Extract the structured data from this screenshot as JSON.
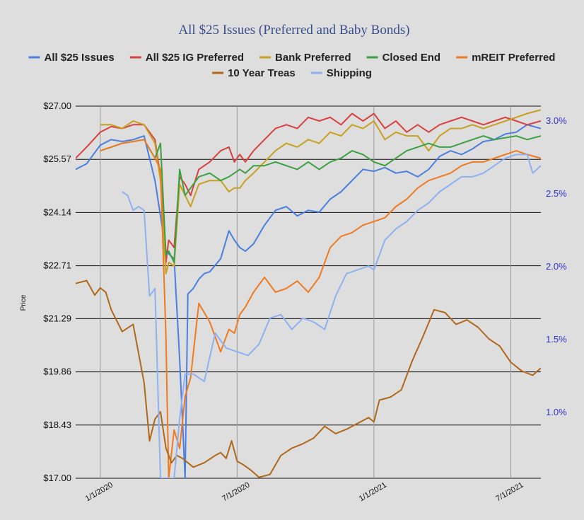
{
  "chart_data": {
    "type": "line",
    "title": "All $25 Issues (Preferred and Baby Bonds)",
    "ylabel": "Price",
    "ylim": [
      17.0,
      27.0
    ],
    "y2lim": [
      0.5,
      3.1
    ],
    "grid": true,
    "legend_position": "top",
    "x_ticks": [
      "1/1/2020",
      "7/1/2020",
      "1/1/2021",
      "7/1/2021"
    ],
    "x_tick_values": [
      2020.0,
      2020.5,
      2021.0,
      2021.5
    ],
    "xlim": [
      2019.91,
      2021.61
    ],
    "y_ticks": [
      "$27.00",
      "$25.57",
      "$24.14",
      "$22.71",
      "$21.29",
      "$19.86",
      "$18.43",
      "$17.00"
    ],
    "y_tick_values": [
      27.0,
      25.57,
      24.14,
      22.71,
      21.29,
      19.86,
      18.43,
      17.0
    ],
    "y2_ticks": [
      "3.0%",
      "2.5%",
      "2.0%",
      "1.5%",
      "1.0%"
    ],
    "y2_tick_values": [
      3.0,
      2.5,
      2.0,
      1.5,
      1.0
    ],
    "series": [
      {
        "name": "All $25 Issues",
        "color": "#4a7fe0",
        "axis": "left",
        "x": [
          2019.91,
          2019.95,
          2020.0,
          2020.04,
          2020.08,
          2020.12,
          2020.16,
          2020.2,
          2020.24,
          2020.27,
          2020.29,
          2020.31,
          2020.32,
          2020.34,
          2020.36,
          2020.38,
          2020.4,
          2020.44,
          2020.47,
          2020.49,
          2020.51,
          2020.53,
          2020.56,
          2020.6,
          2020.64,
          2020.68,
          2020.72,
          2020.76,
          2020.8,
          2020.84,
          2020.88,
          2020.92,
          2020.96,
          2021.0,
          2021.04,
          2021.08,
          2021.12,
          2021.16,
          2021.2,
          2021.24,
          2021.28,
          2021.32,
          2021.36,
          2021.4,
          2021.44,
          2021.48,
          2021.52,
          2021.56,
          2021.61
        ],
        "values": [
          25.3,
          25.45,
          25.95,
          26.1,
          26.05,
          26.1,
          26.2,
          25.0,
          23.1,
          22.9,
          20.2,
          17.0,
          21.95,
          22.1,
          22.35,
          22.5,
          22.55,
          22.9,
          23.65,
          23.4,
          23.2,
          23.1,
          23.3,
          23.8,
          24.2,
          24.3,
          24.05,
          24.2,
          24.15,
          24.5,
          24.7,
          25.0,
          25.3,
          25.25,
          25.35,
          25.2,
          25.25,
          25.1,
          25.3,
          25.65,
          25.8,
          25.7,
          25.85,
          26.05,
          26.1,
          26.25,
          26.3,
          26.5,
          26.4
        ]
      },
      {
        "name": "All $25 IG Preferred",
        "color": "#d94040",
        "axis": "left",
        "x": [
          2019.91,
          2019.95,
          2020.0,
          2020.04,
          2020.08,
          2020.12,
          2020.16,
          2020.2,
          2020.22,
          2020.24,
          2020.25,
          2020.27,
          2020.29,
          2020.31,
          2020.33,
          2020.36,
          2020.4,
          2020.44,
          2020.47,
          2020.49,
          2020.51,
          2020.53,
          2020.56,
          2020.6,
          2020.64,
          2020.68,
          2020.72,
          2020.76,
          2020.8,
          2020.84,
          2020.88,
          2020.92,
          2020.96,
          2021.0,
          2021.04,
          2021.08,
          2021.12,
          2021.16,
          2021.2,
          2021.24,
          2021.28,
          2021.32,
          2021.36,
          2021.4,
          2021.44,
          2021.48,
          2021.52,
          2021.56,
          2021.61
        ],
        "values": [
          25.6,
          25.9,
          26.3,
          26.45,
          26.4,
          26.5,
          26.5,
          26.1,
          25.1,
          22.8,
          23.4,
          23.2,
          25.1,
          24.9,
          24.6,
          25.3,
          25.5,
          25.8,
          25.9,
          25.5,
          25.7,
          25.5,
          25.8,
          26.1,
          26.4,
          26.5,
          26.4,
          26.7,
          26.6,
          26.7,
          26.5,
          26.8,
          26.6,
          26.8,
          26.4,
          26.6,
          26.3,
          26.5,
          26.3,
          26.5,
          26.6,
          26.7,
          26.6,
          26.5,
          26.6,
          26.7,
          26.6,
          26.5,
          26.6
        ]
      },
      {
        "name": "Bank Preferred",
        "color": "#c8a020",
        "axis": "left",
        "x": [
          2020.0,
          2020.04,
          2020.08,
          2020.12,
          2020.16,
          2020.2,
          2020.22,
          2020.24,
          2020.25,
          2020.27,
          2020.29,
          2020.31,
          2020.33,
          2020.36,
          2020.4,
          2020.44,
          2020.47,
          2020.49,
          2020.51,
          2020.53,
          2020.56,
          2020.6,
          2020.64,
          2020.68,
          2020.72,
          2020.76,
          2020.8,
          2020.84,
          2020.88,
          2020.92,
          2020.96,
          2021.0,
          2021.04,
          2021.08,
          2021.12,
          2021.16,
          2021.2,
          2021.24,
          2021.28,
          2021.32,
          2021.36,
          2021.4,
          2021.44,
          2021.48,
          2021.52,
          2021.56,
          2021.61
        ],
        "values": [
          26.5,
          26.5,
          26.4,
          26.6,
          26.5,
          26.0,
          25.0,
          22.5,
          22.8,
          22.7,
          24.9,
          24.6,
          24.3,
          24.9,
          25.0,
          25.0,
          24.7,
          24.8,
          24.8,
          25.0,
          25.2,
          25.5,
          25.8,
          26.0,
          25.9,
          26.1,
          26.0,
          26.3,
          26.2,
          26.5,
          26.4,
          26.6,
          26.1,
          26.3,
          26.2,
          26.2,
          25.8,
          26.2,
          26.4,
          26.4,
          26.5,
          26.4,
          26.5,
          26.6,
          26.7,
          26.8,
          26.9
        ]
      },
      {
        "name": "Closed End",
        "color": "#3aa040",
        "axis": "left",
        "x": [
          2020.0,
          2020.04,
          2020.08,
          2020.12,
          2020.16,
          2020.2,
          2020.22,
          2020.24,
          2020.25,
          2020.27,
          2020.29,
          2020.31,
          2020.33,
          2020.36,
          2020.4,
          2020.44,
          2020.47,
          2020.49,
          2020.51,
          2020.53,
          2020.56,
          2020.6,
          2020.64,
          2020.68,
          2020.72,
          2020.76,
          2020.8,
          2020.84,
          2020.88,
          2020.92,
          2020.96,
          2021.0,
          2021.04,
          2021.08,
          2021.12,
          2021.16,
          2021.2,
          2021.24,
          2021.28,
          2021.32,
          2021.36,
          2021.4,
          2021.44,
          2021.48,
          2021.52,
          2021.56,
          2021.61
        ],
        "values": [
          25.8,
          25.9,
          26.0,
          26.05,
          26.1,
          25.6,
          26.0,
          23.0,
          23.1,
          22.8,
          25.3,
          24.6,
          24.8,
          25.1,
          25.2,
          25.0,
          25.1,
          25.2,
          25.3,
          25.2,
          25.4,
          25.4,
          25.5,
          25.4,
          25.3,
          25.5,
          25.3,
          25.5,
          25.6,
          25.8,
          25.7,
          25.5,
          25.4,
          25.6,
          25.8,
          25.9,
          26.0,
          25.9,
          25.9,
          26.0,
          26.1,
          26.2,
          26.1,
          26.15,
          26.2,
          26.1,
          26.2
        ]
      },
      {
        "name": "mREIT Preferred",
        "color": "#f07a20",
        "axis": "left",
        "x": [
          2020.0,
          2020.04,
          2020.08,
          2020.12,
          2020.16,
          2020.2,
          2020.22,
          2020.24,
          2020.25,
          2020.27,
          2020.29,
          2020.31,
          2020.33,
          2020.36,
          2020.4,
          2020.44,
          2020.47,
          2020.49,
          2020.51,
          2020.53,
          2020.56,
          2020.6,
          2020.64,
          2020.68,
          2020.72,
          2020.76,
          2020.8,
          2020.84,
          2020.88,
          2020.92,
          2020.96,
          2021.0,
          2021.04,
          2021.08,
          2021.12,
          2021.16,
          2021.2,
          2021.24,
          2021.28,
          2021.32,
          2021.36,
          2021.4,
          2021.44,
          2021.48,
          2021.52,
          2021.56,
          2021.61
        ],
        "values": [
          25.8,
          25.9,
          26.0,
          26.05,
          26.1,
          25.6,
          25.3,
          20.8,
          17.0,
          18.3,
          17.8,
          19.2,
          19.7,
          21.7,
          21.2,
          20.4,
          21.0,
          20.9,
          21.4,
          21.6,
          22.0,
          22.4,
          22.0,
          22.1,
          22.3,
          22.0,
          22.4,
          23.2,
          23.5,
          23.6,
          23.8,
          23.9,
          24.0,
          24.3,
          24.5,
          24.8,
          25.0,
          25.1,
          25.2,
          25.4,
          25.5,
          25.5,
          25.6,
          25.7,
          25.8,
          25.7,
          25.6
        ]
      },
      {
        "name": "10 Year Treas",
        "color": "#b06818",
        "axis": "right",
        "x": [
          2019.91,
          2019.95,
          2019.98,
          2020.0,
          2020.02,
          2020.04,
          2020.08,
          2020.12,
          2020.16,
          2020.18,
          2020.2,
          2020.22,
          2020.24,
          2020.26,
          2020.28,
          2020.3,
          2020.32,
          2020.34,
          2020.38,
          2020.42,
          2020.44,
          2020.46,
          2020.48,
          2020.5,
          2020.52,
          2020.55,
          2020.58,
          2020.62,
          2020.66,
          2020.7,
          2020.74,
          2020.78,
          2020.82,
          2020.86,
          2020.9,
          2020.94,
          2020.98,
          2021.0,
          2021.02,
          2021.06,
          2021.1,
          2021.14,
          2021.18,
          2021.22,
          2021.26,
          2021.3,
          2021.34,
          2021.38,
          2021.42,
          2021.46,
          2021.5,
          2021.54,
          2021.58,
          2021.61
        ],
        "values": [
          1.88,
          1.9,
          1.8,
          1.85,
          1.82,
          1.7,
          1.55,
          1.6,
          1.2,
          0.8,
          0.95,
          1.0,
          0.75,
          0.65,
          0.7,
          0.68,
          0.65,
          0.62,
          0.65,
          0.7,
          0.72,
          0.68,
          0.8,
          0.66,
          0.64,
          0.6,
          0.55,
          0.57,
          0.7,
          0.75,
          0.78,
          0.82,
          0.9,
          0.85,
          0.88,
          0.92,
          0.96,
          0.93,
          1.08,
          1.1,
          1.15,
          1.35,
          1.52,
          1.7,
          1.68,
          1.6,
          1.63,
          1.58,
          1.5,
          1.45,
          1.34,
          1.28,
          1.25,
          1.3
        ]
      },
      {
        "name": "Shipping",
        "color": "#8fb0f0",
        "axis": "left",
        "x": [
          2020.08,
          2020.1,
          2020.12,
          2020.14,
          2020.16,
          2020.18,
          2020.2,
          2020.22,
          2020.24,
          2020.25,
          2020.27,
          2020.29,
          2020.31,
          2020.34,
          2020.38,
          2020.42,
          2020.46,
          2020.5,
          2020.54,
          2020.58,
          2020.62,
          2020.66,
          2020.7,
          2020.74,
          2020.78,
          2020.82,
          2020.86,
          2020.9,
          2020.94,
          2020.98,
          2021.0,
          2021.04,
          2021.08,
          2021.12,
          2021.16,
          2021.2,
          2021.24,
          2021.28,
          2021.32,
          2021.36,
          2021.4,
          2021.44,
          2021.48,
          2021.52,
          2021.56,
          2021.58,
          2021.61
        ],
        "values": [
          24.7,
          24.6,
          24.2,
          24.3,
          24.2,
          21.9,
          22.1,
          17.0,
          17.0,
          17.0,
          17.0,
          18.6,
          19.8,
          19.8,
          19.6,
          20.9,
          20.5,
          20.4,
          20.3,
          20.6,
          21.3,
          21.4,
          21.0,
          21.3,
          21.2,
          21.0,
          21.9,
          22.5,
          22.6,
          22.7,
          22.6,
          23.4,
          23.7,
          23.9,
          24.2,
          24.4,
          24.7,
          24.9,
          25.1,
          25.1,
          25.2,
          25.4,
          25.6,
          25.7,
          25.7,
          25.2,
          25.4
        ]
      }
    ]
  }
}
